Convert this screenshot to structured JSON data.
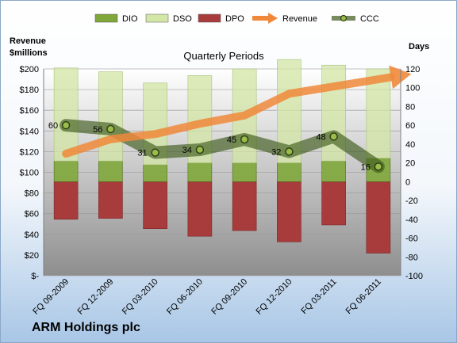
{
  "chart_data": {
    "type": "bar",
    "title": "Quarterly Periods",
    "company": "ARM Holdings plc",
    "y_left_label_line1": "Revenue",
    "y_left_label_line2": "$millions",
    "y_right_label": "Days",
    "categories": [
      "FQ 09-2009",
      "FQ 12-2009",
      "FQ 03-2010",
      "FQ 06-2010",
      "FQ 09-2010",
      "FQ 12-2010",
      "FQ 03-2011",
      "FQ 06-2011"
    ],
    "left_axis": {
      "min": 0,
      "max": 200,
      "step": 20,
      "tick_labels": [
        "$-",
        "$20",
        "$40",
        "$60",
        "$80",
        "$100",
        "$120",
        "$140",
        "$160",
        "$180",
        "$200"
      ]
    },
    "right_axis": {
      "min": -100,
      "max": 120,
      "step": 20,
      "tick_labels": [
        "-100",
        "-80",
        "-60",
        "-40",
        "-20",
        "0",
        "20",
        "40",
        "60",
        "80",
        "100",
        "120"
      ]
    },
    "legend": [
      "DIO",
      "DSO",
      "DPO",
      "Revenue",
      "CCC"
    ],
    "series": [
      {
        "name": "DIO",
        "axis": "right",
        "kind": "stacked-bar",
        "color": "#7fa73a",
        "values": [
          22,
          22,
          18,
          20,
          20,
          20,
          22,
          25
        ]
      },
      {
        "name": "DSO",
        "axis": "right",
        "kind": "stacked-bar",
        "color": "#d3e6a6",
        "values": [
          99,
          95,
          87,
          93,
          100,
          110,
          102,
          95
        ]
      },
      {
        "name": "DPO",
        "axis": "right",
        "kind": "stacked-bar",
        "color": "#a83c3c",
        "values": [
          -40,
          -39,
          -50,
          -58,
          -52,
          -64,
          -46,
          -76
        ]
      },
      {
        "name": "Revenue",
        "axis": "left",
        "kind": "line-arrow",
        "color": "#f0883a",
        "values": [
          118,
          132,
          137,
          147,
          155,
          176,
          183,
          190
        ]
      },
      {
        "name": "CCC",
        "axis": "right",
        "kind": "line",
        "color": "#3f5a1c",
        "values": [
          60,
          56,
          31,
          34,
          45,
          32,
          48,
          16
        ],
        "labels": [
          "60",
          "56",
          "31",
          "34",
          "45",
          "32",
          "48",
          "16"
        ]
      }
    ],
    "grid": true,
    "legend_position": "top"
  }
}
